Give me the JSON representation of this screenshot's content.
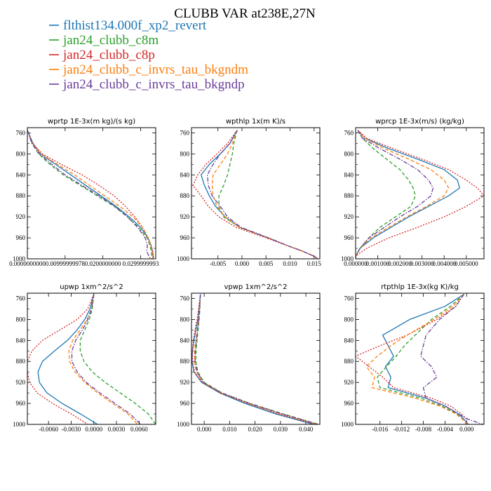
{
  "title": "CLUBB VAR at238E,27N",
  "legend": [
    {
      "name": "flthist134.000f_xp2_revert",
      "color": "#1f77b4",
      "dash": "solid"
    },
    {
      "name": "jan24_clubb_c8m",
      "color": "#2ca02c",
      "dash": "dashed"
    },
    {
      "name": "jan24_clubb_c8p",
      "color": "#d62728",
      "dash": "dotted"
    },
    {
      "name": "jan24_clubb_c_invrs_tau_bkgndm",
      "color": "#ff7f0e",
      "dash": "dashed"
    },
    {
      "name": "jan24_clubb_c_invrs_tau_bkgndp",
      "color": "#6a3d9a",
      "dash": "dashdot"
    }
  ],
  "chart_data": [
    {
      "type": "line",
      "title": "wprtp  1E-3x(m kg)/(s kg)",
      "ylim": [
        1000,
        750
      ],
      "xlim": [
        0,
        0.034
      ],
      "yticks": [
        "760",
        "800",
        "840",
        "880",
        "920",
        "960",
        "1000"
      ],
      "xticks": [
        {
          "v": 0.0,
          "label": "0.0000000000"
        },
        {
          "v": 0.01,
          "label": "0.00999999978"
        },
        {
          "v": 0.02,
          "label": "0.0200000000"
        },
        {
          "v": 0.03,
          "label": "0.0299999993"
        }
      ],
      "levels": [
        755,
        780,
        800,
        820,
        840,
        860,
        880,
        900,
        920,
        940,
        960,
        975,
        985,
        995,
        1000
      ],
      "series": [
        {
          "name": "flthist134.000f_xp2_revert",
          "values": [
            0.0,
            0.0015,
            0.0035,
            0.0075,
            0.0115,
            0.0155,
            0.0195,
            0.0235,
            0.027,
            0.03,
            0.032,
            0.0328,
            0.0331,
            0.0333,
            0.0333
          ]
        },
        {
          "name": "jan24_clubb_c8m",
          "values": [
            0.0,
            0.0012,
            0.003,
            0.006,
            0.0095,
            0.014,
            0.0185,
            0.023,
            0.0265,
            0.0295,
            0.0317,
            0.0325,
            0.0328,
            0.033,
            0.033
          ]
        },
        {
          "name": "jan24_clubb_c8p",
          "values": [
            0.0,
            0.0014,
            0.004,
            0.009,
            0.0145,
            0.019,
            0.023,
            0.026,
            0.0285,
            0.0305,
            0.032,
            0.0328,
            0.0332,
            0.0334,
            0.0334
          ]
        },
        {
          "name": "jan24_clubb_c_invrs_tau_bkgndm",
          "values": [
            0.0,
            0.0013,
            0.0036,
            0.008,
            0.0125,
            0.0165,
            0.0205,
            0.0245,
            0.028,
            0.0305,
            0.032,
            0.0327,
            0.033,
            0.0332,
            0.0332
          ]
        },
        {
          "name": "jan24_clubb_c_invrs_tau_bkgndp",
          "values": [
            0.0,
            0.0012,
            0.0032,
            0.0065,
            0.01,
            0.0145,
            0.019,
            0.0232,
            0.0265,
            0.0292,
            0.0312,
            0.0318,
            0.0316,
            0.0322,
            0.0326
          ]
        }
      ]
    },
    {
      "type": "line",
      "title": "wpthlp  1x(m K)/s",
      "ylim": [
        1000,
        750
      ],
      "xlim": [
        -0.0105,
        0.0162
      ],
      "yticks": [
        "760",
        "800",
        "840",
        "880",
        "920",
        "960",
        "1000"
      ],
      "xticks": [
        {
          "v": -0.005,
          "label": "-0.005"
        },
        {
          "v": 0.0,
          "label": "0.000"
        },
        {
          "v": 0.005,
          "label": "0.005"
        },
        {
          "v": 0.01,
          "label": "0.010"
        },
        {
          "v": 0.015,
          "label": "0.015"
        }
      ],
      "levels": [
        755,
        780,
        800,
        820,
        840,
        860,
        880,
        900,
        920,
        940,
        960,
        975,
        985,
        995,
        1000
      ],
      "series": [
        {
          "name": "flthist134.000f_xp2_revert",
          "values": [
            -0.001,
            -0.0025,
            -0.0045,
            -0.0068,
            -0.0085,
            -0.0078,
            -0.0068,
            -0.0055,
            -0.0035,
            -0.0005,
            0.0055,
            0.0095,
            0.0125,
            0.015,
            0.0158
          ]
        },
        {
          "name": "jan24_clubb_c8m",
          "values": [
            -0.001,
            -0.0017,
            -0.002,
            -0.0025,
            -0.003,
            -0.0038,
            -0.0048,
            -0.0048,
            -0.0038,
            -0.0005,
            0.0055,
            0.0095,
            0.0125,
            0.015,
            0.0158
          ]
        },
        {
          "name": "jan24_clubb_c8p",
          "values": [
            -0.001,
            -0.003,
            -0.0052,
            -0.0075,
            -0.0092,
            -0.0102,
            -0.0085,
            -0.007,
            -0.0048,
            -0.0012,
            0.005,
            0.0095,
            0.0125,
            0.015,
            0.0158
          ]
        },
        {
          "name": "jan24_clubb_c_invrs_tau_bkgndm",
          "values": [
            -0.001,
            -0.002,
            -0.003,
            -0.0045,
            -0.006,
            -0.0062,
            -0.006,
            -0.0052,
            -0.0035,
            -0.0005,
            0.0055,
            0.0095,
            0.0125,
            0.015,
            0.0158
          ]
        },
        {
          "name": "jan24_clubb_c_invrs_tau_bkgndp",
          "values": [
            -0.001,
            -0.0025,
            -0.0045,
            -0.006,
            -0.0072,
            -0.007,
            -0.0062,
            -0.0045,
            -0.003,
            -0.0002,
            0.0055,
            0.0095,
            0.0125,
            0.015,
            0.0158
          ]
        }
      ]
    },
    {
      "type": "line",
      "title": "wprcp  1E-3x(m/s) (kg/kg)",
      "ylim": [
        1000,
        750
      ],
      "xlim": [
        0,
        0.0058
      ],
      "yticks": [
        "760",
        "800",
        "840",
        "880",
        "920",
        "960",
        "1000"
      ],
      "xticks": [
        {
          "v": 0.0,
          "label": "0.000000"
        },
        {
          "v": 0.001,
          "label": "0.001000"
        },
        {
          "v": 0.002,
          "label": "0.002000"
        },
        {
          "v": 0.003,
          "label": "0.003000"
        },
        {
          "v": 0.004,
          "label": "0.004000"
        },
        {
          "v": 0.005,
          "label": "0.005000"
        }
      ],
      "levels": [
        755,
        770,
        790,
        810,
        830,
        850,
        865,
        880,
        900,
        920,
        940,
        960,
        980,
        995,
        1000
      ],
      "series": [
        {
          "name": "flthist134.000f_xp2_revert",
          "values": [
            0.0001,
            0.0004,
            0.0015,
            0.0028,
            0.004,
            0.0046,
            0.0047,
            0.0042,
            0.0033,
            0.0024,
            0.0016,
            0.0008,
            0.0002,
            0.0,
            0.0
          ]
        },
        {
          "name": "jan24_clubb_c8m",
          "values": [
            0.0001,
            0.0003,
            0.0008,
            0.0014,
            0.002,
            0.0024,
            0.0026,
            0.0027,
            0.0025,
            0.0018,
            0.0011,
            0.0006,
            0.0002,
            0.0,
            0.0
          ]
        },
        {
          "name": "jan24_clubb_c8p",
          "values": [
            0.0001,
            0.0005,
            0.0017,
            0.003,
            0.0042,
            0.005,
            0.0055,
            0.0058,
            0.005,
            0.004,
            0.0028,
            0.0015,
            0.0005,
            0.0,
            0.0
          ]
        },
        {
          "name": "jan24_clubb_c_invrs_tau_bkgndm",
          "values": [
            0.0001,
            0.0004,
            0.0013,
            0.0024,
            0.0034,
            0.004,
            0.0042,
            0.004,
            0.0032,
            0.0023,
            0.0015,
            0.0007,
            0.0002,
            0.0,
            0.0
          ]
        },
        {
          "name": "jan24_clubb_c_invrs_tau_bkgndp",
          "values": [
            0.0001,
            0.0003,
            0.0011,
            0.002,
            0.0028,
            0.0033,
            0.0035,
            0.0034,
            0.0028,
            0.002,
            0.0013,
            0.0006,
            0.0002,
            0.0,
            0.0
          ]
        }
      ]
    },
    {
      "type": "line",
      "title": "upwp  1xm^2/s^2",
      "ylim": [
        1000,
        750
      ],
      "xlim": [
        -0.0088,
        0.0082
      ],
      "yticks": [
        "760",
        "800",
        "840",
        "880",
        "920",
        "960",
        "1000"
      ],
      "xticks": [
        {
          "v": -0.006,
          "label": "-0.0060"
        },
        {
          "v": -0.003,
          "label": "-0.0030"
        },
        {
          "v": 0.0,
          "label": "0.0000"
        },
        {
          "v": 0.003,
          "label": "0.0030"
        },
        {
          "v": 0.006,
          "label": "0.0060"
        }
      ],
      "levels": [
        752,
        780,
        800,
        820,
        840,
        860,
        880,
        900,
        920,
        940,
        960,
        980,
        1000
      ],
      "series": [
        {
          "name": "flthist134.000f_xp2_revert",
          "values": [
            0.0,
            -0.0005,
            -0.0012,
            -0.0022,
            -0.0035,
            -0.0052,
            -0.0068,
            -0.0074,
            -0.0072,
            -0.0062,
            -0.0042,
            -0.0018,
            0.0005
          ]
        },
        {
          "name": "jan24_clubb_c8m",
          "values": [
            0.0,
            -0.0002,
            -0.0006,
            -0.0012,
            -0.0018,
            -0.0018,
            -0.0013,
            -0.0002,
            0.0015,
            0.0035,
            0.0055,
            0.0072,
            0.0082
          ]
        },
        {
          "name": "jan24_clubb_c8p",
          "values": [
            0.0,
            -0.0008,
            -0.0022,
            -0.0045,
            -0.0068,
            -0.0082,
            -0.0088,
            -0.0088,
            -0.0085,
            -0.0075,
            -0.0055,
            -0.003,
            -0.0008
          ]
        },
        {
          "name": "jan24_clubb_c_invrs_tau_bkgndm",
          "values": [
            0.0,
            -0.0003,
            -0.0009,
            -0.0018,
            -0.0028,
            -0.0033,
            -0.0032,
            -0.0025,
            -0.0012,
            0.0005,
            0.0025,
            0.0045,
            0.0058
          ]
        },
        {
          "name": "jan24_clubb_c_invrs_tau_bkgndp",
          "values": [
            0.0,
            -0.0003,
            -0.0008,
            -0.0015,
            -0.0024,
            -0.0029,
            -0.0029,
            -0.0022,
            -0.001,
            0.0008,
            0.0028,
            0.0048,
            0.0062
          ]
        }
      ]
    },
    {
      "type": "line",
      "title": "vpwp  1xm^2/s^2",
      "ylim": [
        1000,
        750
      ],
      "xlim": [
        -0.005,
        0.0455
      ],
      "yticks": [
        "760",
        "800",
        "840",
        "880",
        "920",
        "960",
        "1000"
      ],
      "xticks": [
        {
          "v": 0.0,
          "label": "0.000"
        },
        {
          "v": 0.01,
          "label": "0.010"
        },
        {
          "v": 0.02,
          "label": "0.020"
        },
        {
          "v": 0.03,
          "label": "0.030"
        },
        {
          "v": 0.04,
          "label": "0.040"
        }
      ],
      "levels": [
        752,
        780,
        800,
        820,
        840,
        860,
        880,
        900,
        920,
        940,
        960,
        980,
        1000
      ],
      "series": [
        {
          "name": "flthist134.000f_xp2_revert",
          "values": [
            -0.0015,
            -0.002,
            -0.0025,
            -0.0033,
            -0.004,
            -0.0046,
            -0.0048,
            -0.004,
            -0.001,
            0.006,
            0.016,
            0.028,
            0.043
          ]
        },
        {
          "name": "jan24_clubb_c8m",
          "values": [
            -0.0015,
            -0.0017,
            -0.002,
            -0.0024,
            -0.0028,
            -0.0032,
            -0.0033,
            -0.0025,
            0.0,
            0.007,
            0.018,
            0.031,
            0.045
          ]
        },
        {
          "name": "jan24_clubb_c8p",
          "values": [
            -0.0015,
            -0.0022,
            -0.0028,
            -0.0036,
            -0.0043,
            -0.0047,
            -0.0046,
            -0.0038,
            -0.0008,
            0.0065,
            0.017,
            0.029,
            0.044
          ]
        },
        {
          "name": "jan24_clubb_c_invrs_tau_bkgndm",
          "values": [
            -0.0015,
            -0.0018,
            -0.0022,
            -0.0027,
            -0.0033,
            -0.0038,
            -0.0039,
            -0.003,
            -0.0005,
            0.0065,
            0.0175,
            0.03,
            0.0445
          ]
        },
        {
          "name": "jan24_clubb_c_invrs_tau_bkgndp",
          "values": [
            -0.0015,
            -0.0018,
            -0.0021,
            -0.0026,
            -0.0031,
            -0.0035,
            -0.0036,
            -0.0028,
            -0.0003,
            0.0068,
            0.0178,
            0.0305,
            0.0448
          ]
        }
      ]
    },
    {
      "type": "line",
      "title": "rtpthlp  1E-3x(kg K)/kg",
      "ylim": [
        1000,
        750
      ],
      "xlim": [
        -0.0205,
        0.0032
      ],
      "yticks": [
        "760",
        "800",
        "840",
        "880",
        "920",
        "960",
        "1000"
      ],
      "xticks": [
        {
          "v": -0.016,
          "label": "-0.016"
        },
        {
          "v": -0.012,
          "label": "-0.012"
        },
        {
          "v": -0.008,
          "label": "-0.008"
        },
        {
          "v": -0.004,
          "label": "-0.004"
        },
        {
          "v": 0.0,
          "label": "0.000"
        }
      ],
      "levels": [
        752,
        775,
        800,
        830,
        850,
        870,
        890,
        910,
        930,
        950,
        965,
        980,
        990,
        1000
      ],
      "series": [
        {
          "name": "flthist134.000f_xp2_revert",
          "values": [
            -0.0005,
            -0.004,
            -0.0105,
            -0.0155,
            -0.0145,
            -0.0135,
            -0.015,
            -0.014,
            -0.0145,
            -0.0075,
            -0.004,
            -0.0015,
            -0.0005,
            0.0003
          ]
        },
        {
          "name": "jan24_clubb_c8m",
          "values": [
            -0.0005,
            -0.003,
            -0.0065,
            -0.0095,
            -0.0115,
            -0.013,
            -0.0148,
            -0.0165,
            -0.016,
            -0.0085,
            -0.0045,
            -0.0018,
            -0.0008,
            0.0
          ]
        },
        {
          "name": "jan24_clubb_c8p",
          "values": [
            -0.0005,
            -0.002,
            -0.0055,
            -0.011,
            -0.016,
            -0.0205,
            -0.018,
            -0.0155,
            -0.0135,
            -0.0065,
            -0.003,
            -0.001,
            0.0,
            0.0
          ]
        },
        {
          "name": "jan24_clubb_c_invrs_tau_bkgndm",
          "values": [
            -0.0005,
            -0.0025,
            -0.006,
            -0.011,
            -0.014,
            -0.0165,
            -0.0185,
            -0.017,
            -0.0175,
            -0.0095,
            -0.005,
            -0.002,
            -0.0008,
            0.0
          ]
        },
        {
          "name": "jan24_clubb_c_invrs_tau_bkgndp",
          "values": [
            -0.0005,
            -0.002,
            -0.005,
            -0.0075,
            -0.008,
            -0.0085,
            -0.0065,
            -0.0055,
            -0.008,
            -0.0075,
            -0.004,
            -0.0015,
            0.0002,
            0.003
          ]
        }
      ]
    }
  ]
}
